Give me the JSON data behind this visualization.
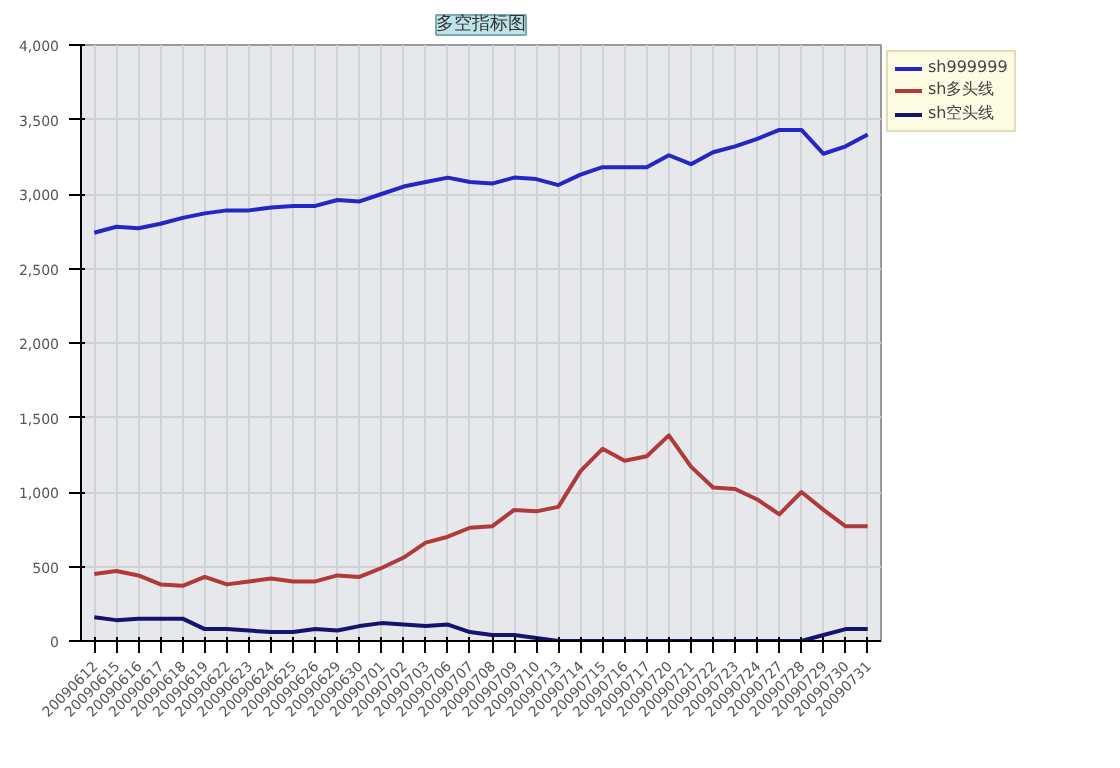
{
  "chart_data": {
    "type": "line",
    "title": "多空指标图",
    "categories": [
      "20090612",
      "20090615",
      "20090616",
      "20090617",
      "20090618",
      "20090619",
      "20090622",
      "20090623",
      "20090624",
      "20090625",
      "20090626",
      "20090629",
      "20090630",
      "20090701",
      "20090702",
      "20090703",
      "20090706",
      "20090707",
      "20090708",
      "20090709",
      "20090710",
      "20090713",
      "20090714",
      "20090715",
      "20090716",
      "20090717",
      "20090720",
      "20090721",
      "20090722",
      "20090723",
      "20090724",
      "20090727",
      "20090728",
      "20090729",
      "20090730",
      "20090731"
    ],
    "series": [
      {
        "name": "sh999999",
        "color": "#2626c4",
        "values": [
          2740,
          2780,
          2770,
          2800,
          2840,
          2870,
          2890,
          2890,
          2910,
          2920,
          2920,
          2960,
          2950,
          3000,
          3050,
          3080,
          3110,
          3080,
          3070,
          3110,
          3100,
          3060,
          3130,
          3180,
          3180,
          3180,
          3260,
          3200,
          3280,
          3320,
          3370,
          3430,
          3430,
          3270,
          3320,
          3400
        ]
      },
      {
        "name": "sh多头线",
        "color": "#b03a3a",
        "values": [
          450,
          470,
          440,
          380,
          370,
          430,
          380,
          400,
          420,
          400,
          400,
          440,
          430,
          490,
          560,
          660,
          700,
          760,
          770,
          880,
          870,
          900,
          1140,
          1290,
          1210,
          1240,
          1380,
          1170,
          1030,
          1020,
          950,
          850,
          1000,
          880,
          770,
          770
        ]
      },
      {
        "name": "sh空头线",
        "color": "#14146e",
        "values": [
          160,
          140,
          150,
          150,
          150,
          80,
          80,
          70,
          60,
          60,
          80,
          70,
          100,
          120,
          110,
          100,
          110,
          60,
          40,
          40,
          20,
          0,
          0,
          0,
          0,
          0,
          0,
          0,
          0,
          0,
          0,
          0,
          0,
          40,
          80,
          80
        ]
      }
    ],
    "ylim": [
      0,
      4000
    ],
    "yticks": [
      {
        "value": 0,
        "label": "0"
      },
      {
        "value": 500,
        "label": "500"
      },
      {
        "value": 1000,
        "label": "1,000"
      },
      {
        "value": 1500,
        "label": "1,500"
      },
      {
        "value": 2000,
        "label": "2,000"
      },
      {
        "value": 2500,
        "label": "2,500"
      },
      {
        "value": 3000,
        "label": "3,000"
      },
      {
        "value": 3500,
        "label": "3,500"
      },
      {
        "value": 4000,
        "label": "4,000"
      }
    ],
    "grid": true,
    "legend": "top right"
  }
}
